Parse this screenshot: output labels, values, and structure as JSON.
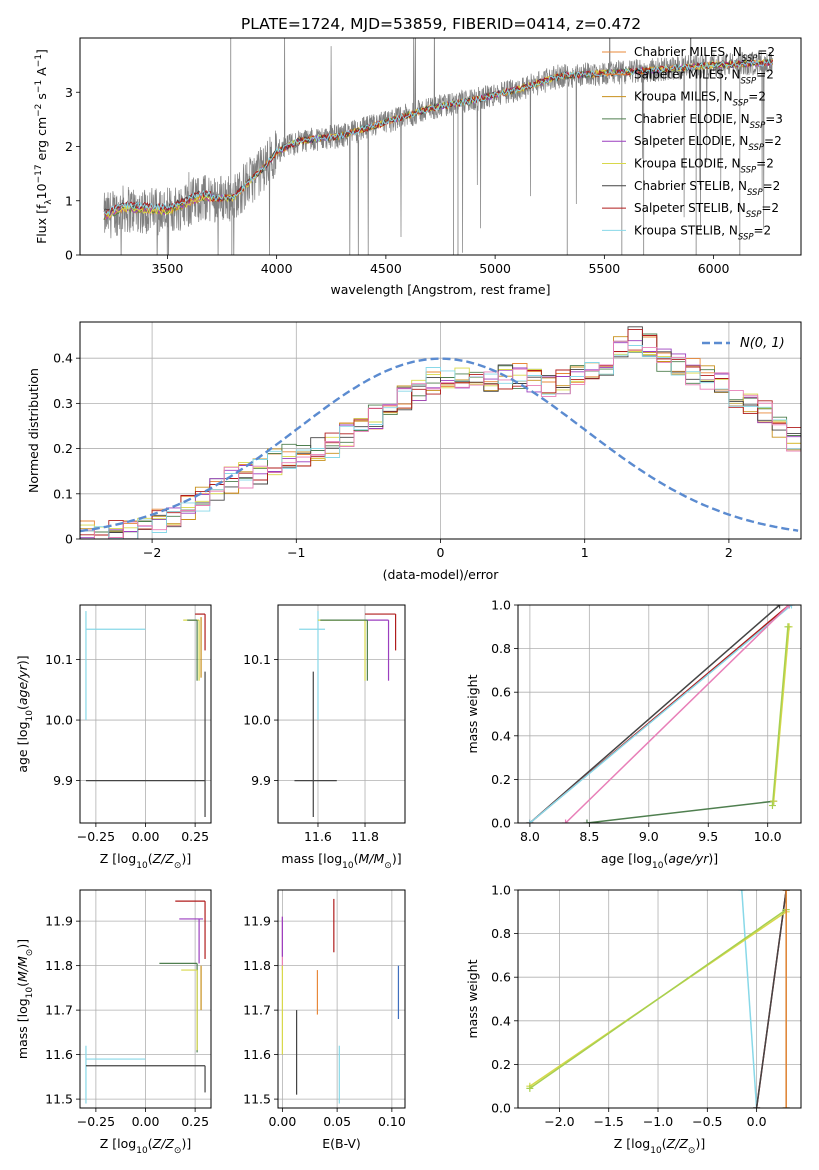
{
  "figure_title": "PLATE=1724, MJD=53859, FIBERID=0414, z=0.472",
  "colors": {
    "Chabrier MILES": "#e8883a",
    "Salpeter MILES": "#e8883a",
    "Kroupa MILES": "#c8901c",
    "Chabrier ELODIE": "#4f7f4f",
    "Salpeter ELODIE": "#9b3fbf",
    "Kroupa ELODIE": "#d8d84a",
    "Chabrier STELIB": "#444444",
    "Salpeter STELIB": "#b01c1c",
    "Kroupa STELIB": "#88d8e8",
    "data": "#7f7f7f",
    "normal": "#5b8bd0",
    "pink": "#e87fb8",
    "blue": "#3f6fbf",
    "lime": "#a8d050"
  },
  "chart_data": [
    {
      "id": "spectrum",
      "type": "line",
      "title": "",
      "xlabel": "wavelength [Angstrom, rest frame]",
      "ylabel": "Flux [f",
      "ylabel_parts": [
        "Flux [f",
        "λ",
        "10",
        "−17",
        " erg cm",
        "−2",
        " s",
        "−1",
        " A",
        "−1",
        "]"
      ],
      "xlim": [
        3100,
        6400
      ],
      "ylim": [
        0,
        4
      ],
      "xticks": [
        3500,
        4000,
        4500,
        5000,
        5500,
        6000
      ],
      "yticks": [
        0,
        1,
        2,
        3
      ],
      "grid": false,
      "legend_position": "top-right",
      "legend": [
        {
          "base": "Chabrier MILES, N",
          "sub": "SSP",
          "tail": "=2"
        },
        {
          "base": "Salpeter MILES, N",
          "sub": "SSP",
          "tail": "=2"
        },
        {
          "base": "Kroupa MILES, N",
          "sub": "SSP",
          "tail": "=2"
        },
        {
          "base": "Chabrier ELODIE, N",
          "sub": "SSP",
          "tail": "=3"
        },
        {
          "base": "Salpeter ELODIE, N",
          "sub": "SSP",
          "tail": "=2"
        },
        {
          "base": "Kroupa ELODIE, N",
          "sub": "SSP",
          "tail": "=2"
        },
        {
          "base": "Chabrier STELIB, N",
          "sub": "SSP",
          "tail": "=2"
        },
        {
          "base": "Salpeter STELIB, N",
          "sub": "SSP",
          "tail": "=2"
        },
        {
          "base": "Kroupa STELIB, N",
          "sub": "SSP",
          "tail": "=2"
        }
      ],
      "data_range": [
        3210,
        6270
      ],
      "model_anchors": [
        [
          3210,
          0.7
        ],
        [
          3300,
          0.85
        ],
        [
          3500,
          0.8
        ],
        [
          3650,
          1.05
        ],
        [
          3800,
          1.05
        ],
        [
          3950,
          1.65
        ],
        [
          4000,
          1.9
        ],
        [
          4100,
          2.1
        ],
        [
          4300,
          2.2
        ],
        [
          4500,
          2.45
        ],
        [
          4700,
          2.7
        ],
        [
          4900,
          2.85
        ],
        [
          5100,
          3.05
        ],
        [
          5300,
          3.3
        ],
        [
          5500,
          3.35
        ],
        [
          5700,
          3.4
        ],
        [
          6000,
          3.5
        ],
        [
          6270,
          3.55
        ]
      ]
    },
    {
      "id": "residuals",
      "type": "step",
      "xlabel": "(data-model)/error",
      "ylabel": "Normed distribution",
      "xlim": [
        -2.5,
        2.5
      ],
      "ylim": [
        0,
        0.48
      ],
      "xticks": [
        -2,
        -1,
        0,
        1,
        2
      ],
      "xticklabels": [
        "−2",
        "−1",
        "0",
        "1",
        "2"
      ],
      "yticks": [
        0.0,
        0.1,
        0.2,
        0.3,
        0.4
      ],
      "grid": true,
      "legend_position": "top-right",
      "legend": [
        "N(0,1)"
      ],
      "normal": {
        "mean": 0,
        "sigma": 1
      },
      "bin_width": 0.1,
      "bin_start": -2.5,
      "base_hist": [
        0.01,
        0.015,
        0.02,
        0.025,
        0.03,
        0.04,
        0.05,
        0.07,
        0.09,
        0.11,
        0.13,
        0.14,
        0.15,
        0.17,
        0.18,
        0.19,
        0.2,
        0.21,
        0.23,
        0.25,
        0.27,
        0.29,
        0.31,
        0.33,
        0.35,
        0.36,
        0.35,
        0.34,
        0.35,
        0.36,
        0.36,
        0.35,
        0.34,
        0.35,
        0.36,
        0.37,
        0.39,
        0.42,
        0.44,
        0.43,
        0.4,
        0.38,
        0.37,
        0.36,
        0.35,
        0.32,
        0.3,
        0.28,
        0.25,
        0.22,
        0.2,
        0.18,
        0.16,
        0.14,
        0.12,
        0.11,
        0.1,
        0.09,
        0.08,
        0.08,
        0.08,
        0.07,
        0.07,
        0.06,
        0.06,
        0.06,
        0.05,
        0.05,
        0.05,
        0.04,
        0.04,
        0.04,
        0.04,
        0.04,
        0.03,
        0.03,
        0.03,
        0.03,
        0.03,
        0.03
      ]
    },
    {
      "id": "age_Z",
      "type": "errorbar",
      "xlabel": "Z [log10(Z/Z⊙)]",
      "ylabel": "age  [log10(age/yr)]",
      "xlim": [
        -0.33,
        0.33
      ],
      "ylim": [
        9.83,
        10.19
      ],
      "xticks": [
        -0.25,
        0.0,
        0.25
      ],
      "xticklabels": [
        "−0.25",
        "0.00",
        "0.25"
      ],
      "yticks": [
        9.9,
        10.0,
        10.1
      ],
      "yticklabels": [
        "9.9",
        "10.0",
        "10.1"
      ],
      "grid": true,
      "points": [
        {
          "model": "Kroupa STELIB",
          "x": -0.3,
          "y": 10.15,
          "xerr": [
            0,
            0.3
          ],
          "yerr": [
            0.15,
            0.03
          ]
        },
        {
          "model": "Chabrier STELIB",
          "x": 0.3,
          "y": 9.9,
          "xerr": [
            0.6,
            0
          ],
          "yerr": [
            0.06,
            0.18
          ]
        },
        {
          "model": "Salpeter STELIB",
          "x": 0.3,
          "y": 10.175,
          "xerr": [
            0.05,
            0
          ],
          "yerr": [
            0.06,
            0
          ]
        },
        {
          "model": "Salpeter ELODIE",
          "x": 0.27,
          "y": 10.165,
          "xerr": [
            0.05,
            0
          ],
          "yerr": [
            0.0,
            0
          ]
        },
        {
          "model": "Kroupa ELODIE",
          "x": 0.27,
          "y": 10.165,
          "xerr": [
            0.08,
            0
          ],
          "yerr": [
            0.1,
            0
          ]
        },
        {
          "model": "Chabrier ELODIE",
          "x": 0.26,
          "y": 10.165,
          "xerr": [
            0.05,
            0
          ],
          "yerr": [
            0.1,
            0
          ]
        },
        {
          "model": "Kroupa MILES",
          "x": 0.28,
          "y": 10.17,
          "xerr": [
            0,
            0
          ],
          "yerr": [
            0.1,
            0
          ]
        }
      ]
    },
    {
      "id": "age_mass",
      "type": "errorbar",
      "xlabel": "mass [log10(M/M⊙)]",
      "xlim": [
        11.43,
        11.97
      ],
      "ylim": [
        9.83,
        10.19
      ],
      "xticks": [
        11.6,
        11.8
      ],
      "xticklabels": [
        "11.6",
        "11.8"
      ],
      "yticks": [
        9.9,
        10.0,
        10.1
      ],
      "yticklabels": [
        "9.9",
        "10.0",
        "10.1"
      ],
      "grid": true,
      "points": [
        {
          "model": "Kroupa STELIB",
          "x": 11.6,
          "y": 10.15,
          "xerr": [
            0.08,
            0.03
          ],
          "yerr": [
            0.15,
            0.03
          ]
        },
        {
          "model": "Chabrier STELIB",
          "x": 11.58,
          "y": 9.9,
          "xerr": [
            0.08,
            0.1
          ],
          "yerr": [
            0.06,
            0.18
          ]
        },
        {
          "model": "Salpeter STELIB",
          "x": 11.93,
          "y": 10.175,
          "xerr": [
            0.13,
            0
          ],
          "yerr": [
            0.06,
            0
          ]
        },
        {
          "model": "Salpeter ELODIE",
          "x": 11.9,
          "y": 10.165,
          "xerr": [
            0.1,
            0
          ],
          "yerr": [
            0.1,
            0
          ]
        },
        {
          "model": "Kroupa ELODIE",
          "x": 11.8,
          "y": 10.165,
          "xerr": [
            0.2,
            0
          ],
          "yerr": [
            0.1,
            0
          ]
        },
        {
          "model": "Chabrier ELODIE",
          "x": 11.81,
          "y": 10.165,
          "xerr": [
            0.2,
            0
          ],
          "yerr": [
            0.1,
            0
          ]
        }
      ]
    },
    {
      "id": "weight_age",
      "type": "line",
      "xlabel": "age  [log10(age/yr)]",
      "ylabel": "mass weight",
      "xlim": [
        7.9,
        10.28
      ],
      "ylim": [
        0,
        1
      ],
      "xticks": [
        8.0,
        8.5,
        9.0,
        9.5,
        10.0
      ],
      "xticklabels": [
        "8.0",
        "8.5",
        "9.0",
        "9.5",
        "10.0"
      ],
      "yticks": [
        0.0,
        0.2,
        0.4,
        0.6,
        0.8,
        1.0
      ],
      "yticklabels": [
        "0.0",
        "0.2",
        "0.4",
        "0.6",
        "0.8",
        "1.0"
      ],
      "grid": true,
      "lines": [
        {
          "model": "Chabrier STELIB",
          "x": [
            8.0,
            10.1
          ],
          "y": [
            0.0,
            1.0
          ]
        },
        {
          "model": "Salpeter STELIB",
          "x": [
            8.0,
            10.18
          ],
          "y": [
            0.0,
            1.0
          ]
        },
        {
          "model": "Kroupa STELIB",
          "x": [
            8.0,
            10.2
          ],
          "y": [
            0.0,
            1.0
          ]
        },
        {
          "color": "pink",
          "x": [
            8.3,
            10.18
          ],
          "y": [
            0.0,
            1.0
          ]
        },
        {
          "model": "Chabrier ELODIE",
          "x": [
            8.48,
            10.05
          ],
          "y": [
            0.0,
            0.1
          ]
        },
        {
          "model": "Kroupa ELODIE",
          "x": [
            10.05,
            10.18
          ],
          "y": [
            0.1,
            0.9
          ]
        },
        {
          "color": "lime",
          "x": [
            10.04,
            10.17
          ],
          "y": [
            0.08,
            0.9
          ]
        }
      ]
    },
    {
      "id": "mass_Z",
      "type": "errorbar",
      "xlabel": "Z [log10(Z/Z⊙)]",
      "ylabel": "mass [log10(M/M⊙)]",
      "xlim": [
        -0.33,
        0.33
      ],
      "ylim": [
        11.48,
        11.97
      ],
      "xticks": [
        -0.25,
        0.0,
        0.25
      ],
      "xticklabels": [
        "−0.25",
        "0.00",
        "0.25"
      ],
      "yticks": [
        11.5,
        11.6,
        11.7,
        11.8,
        11.9
      ],
      "yticklabels": [
        "11.5",
        "11.6",
        "11.7",
        "11.8",
        "11.9"
      ],
      "grid": true,
      "points": [
        {
          "model": "Kroupa STELIB",
          "x": -0.3,
          "y": 11.59,
          "xerr": [
            0,
            0.3
          ],
          "yerr": [
            0.1,
            0.03
          ]
        },
        {
          "model": "Chabrier STELIB",
          "x": 0.3,
          "y": 11.575,
          "xerr": [
            0.6,
            0
          ],
          "yerr": [
            0.06,
            0.0
          ]
        },
        {
          "model": "Salpeter STELIB",
          "x": 0.3,
          "y": 11.945,
          "xerr": [
            0.15,
            0
          ],
          "yerr": [
            0.13,
            0
          ]
        },
        {
          "model": "Salpeter ELODIE",
          "x": 0.27,
          "y": 11.905,
          "xerr": [
            0.1,
            0.02
          ],
          "yerr": [
            0.1,
            0
          ]
        },
        {
          "model": "Chabrier ELODIE",
          "x": 0.26,
          "y": 11.805,
          "xerr": [
            0.19,
            0
          ],
          "yerr": [
            0.2,
            0
          ]
        },
        {
          "model": "Kroupa ELODIE",
          "x": 0.26,
          "y": 11.79,
          "xerr": [
            0.08,
            0
          ],
          "yerr": [
            0.18,
            0
          ]
        },
        {
          "model": "Kroupa MILES",
          "x": 0.28,
          "y": 11.8,
          "xerr": [
            0,
            0
          ],
          "yerr": [
            0.1,
            0
          ]
        }
      ]
    },
    {
      "id": "mass_ebv",
      "type": "errorbar",
      "xlabel": "E(B-V)",
      "xlim": [
        -0.004,
        0.112
      ],
      "ylim": [
        11.48,
        11.97
      ],
      "xticks": [
        0.0,
        0.05,
        0.1
      ],
      "xticklabels": [
        "0.00",
        "0.05",
        "0.10"
      ],
      "yticks": [
        11.5,
        11.6,
        11.7,
        11.8,
        11.9
      ],
      "yticklabels": [
        "11.5",
        "11.6",
        "11.7",
        "11.8",
        "11.9"
      ],
      "grid": true,
      "points": [
        {
          "color": "pink",
          "x": 0.0,
          "y": 11.86,
          "yerr": [
            0.07,
            0.05
          ]
        },
        {
          "model": "Salpeter ELODIE",
          "x": 0.0,
          "y": 11.86,
          "yerr": [
            0.04,
            0.05
          ]
        },
        {
          "model": "Kroupa ELODIE",
          "x": 0.0,
          "y": 11.7,
          "yerr": [
            0.1,
            0.1
          ]
        },
        {
          "model": "Chabrier STELIB",
          "x": 0.013,
          "y": 11.6,
          "yerr": [
            0.09,
            0.1
          ]
        },
        {
          "model": "Chabrier MILES",
          "x": 0.032,
          "y": 11.74,
          "yerr": [
            0.05,
            0.05
          ]
        },
        {
          "model": "Salpeter STELIB",
          "x": 0.047,
          "y": 11.89,
          "yerr": [
            0.06,
            0.06
          ]
        },
        {
          "model": "Kroupa STELIB",
          "x": 0.052,
          "y": 11.55,
          "yerr": [
            0.06,
            0.07
          ]
        },
        {
          "color": "blue",
          "x": 0.106,
          "y": 11.74,
          "yerr": [
            0.06,
            0.06
          ]
        }
      ]
    },
    {
      "id": "weight_Z",
      "type": "line",
      "xlabel": "Z [log10(Z/Z⊙)]",
      "ylabel": "mass weight",
      "xlim": [
        -2.42,
        0.45
      ],
      "ylim": [
        0,
        1
      ],
      "xticks": [
        -2.0,
        -1.5,
        -1.0,
        -0.5,
        0.0
      ],
      "xticklabels": [
        "−2.0",
        "−1.5",
        "−1.0",
        "−0.5",
        "0.0"
      ],
      "yticks": [
        0.0,
        0.2,
        0.4,
        0.6,
        0.8,
        1.0
      ],
      "yticklabels": [
        "0.0",
        "0.2",
        "0.4",
        "0.6",
        "0.8",
        "1.0"
      ],
      "grid": true,
      "lines": [
        {
          "model": "Kroupa STELIB",
          "x": [
            -0.15,
            0.0
          ],
          "y": [
            1.0,
            0.0
          ]
        },
        {
          "model": "Salpeter STELIB",
          "x": [
            0.0,
            0.3
          ],
          "y": [
            0.0,
            1.0
          ]
        },
        {
          "model": "Chabrier STELIB",
          "x": [
            0.0,
            0.3
          ],
          "y": [
            0.0,
            1.0
          ]
        },
        {
          "model": "Kroupa ELODIE",
          "x": [
            -2.3,
            0.3
          ],
          "y": [
            0.1,
            0.9
          ]
        },
        {
          "color": "lime",
          "x": [
            -2.3,
            0.3
          ],
          "y": [
            0.09,
            0.91
          ]
        },
        {
          "model": "Chabrier ELODIE",
          "x": [
            0.3,
            0.3
          ],
          "y": [
            0.0,
            1.0
          ]
        },
        {
          "model": "Chabrier MILES",
          "x": [
            0.3,
            0.3
          ],
          "y": [
            0.0,
            1.0
          ]
        }
      ]
    }
  ]
}
